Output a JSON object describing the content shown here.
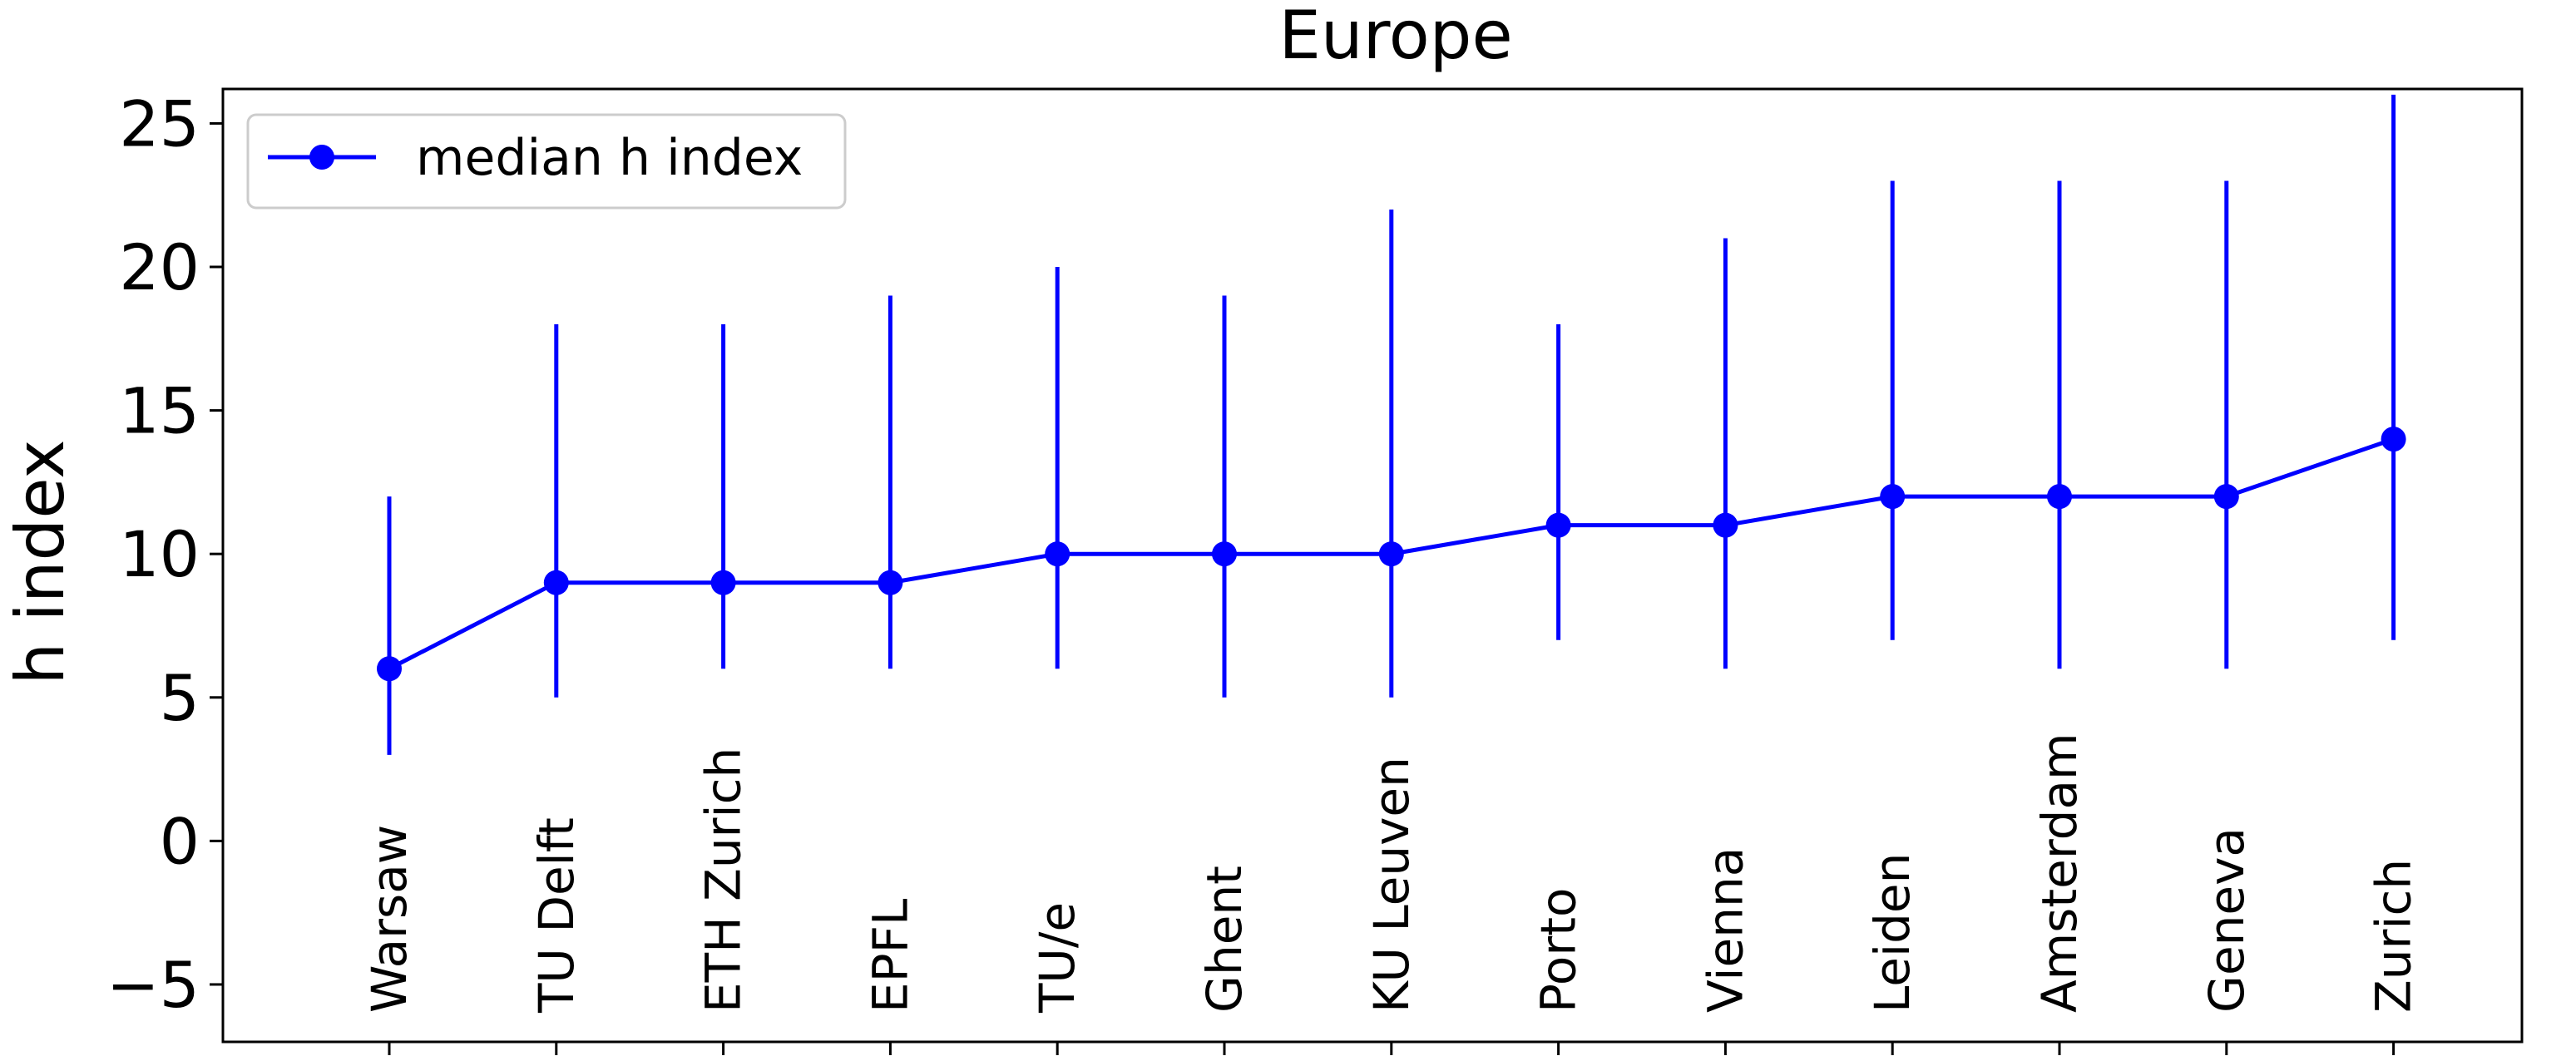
{
  "chart_data": {
    "type": "line",
    "title": "Europe",
    "xlabel": "",
    "ylabel": "h index",
    "ylim": [
      -7,
      26.2
    ],
    "yticks": [
      -5,
      0,
      5,
      10,
      15,
      20,
      25
    ],
    "ytick_labels": [
      "−5",
      "0",
      "5",
      "10",
      "15",
      "20",
      "25"
    ],
    "grid": false,
    "legend_position": "top-left",
    "color": "#0000ff",
    "categories": [
      "Warsaw",
      "TU Delft",
      "ETH Zurich",
      "EPFL",
      "TU/e",
      "Ghent",
      "KU Leuven",
      "Porto",
      "Vienna",
      "Leiden",
      "Amsterdam",
      "Geneva",
      "Zurich"
    ],
    "series": [
      {
        "name": "median h index",
        "values": [
          6,
          9,
          9,
          9,
          10,
          10,
          10,
          11,
          11,
          12,
          12,
          12,
          14
        ],
        "error_low": [
          3,
          5,
          6,
          6,
          6,
          5,
          5,
          7,
          6,
          7,
          6,
          6,
          7
        ],
        "error_high": [
          12,
          18,
          18,
          19,
          20,
          19,
          22,
          18,
          21,
          23,
          23,
          23,
          26
        ]
      }
    ]
  }
}
